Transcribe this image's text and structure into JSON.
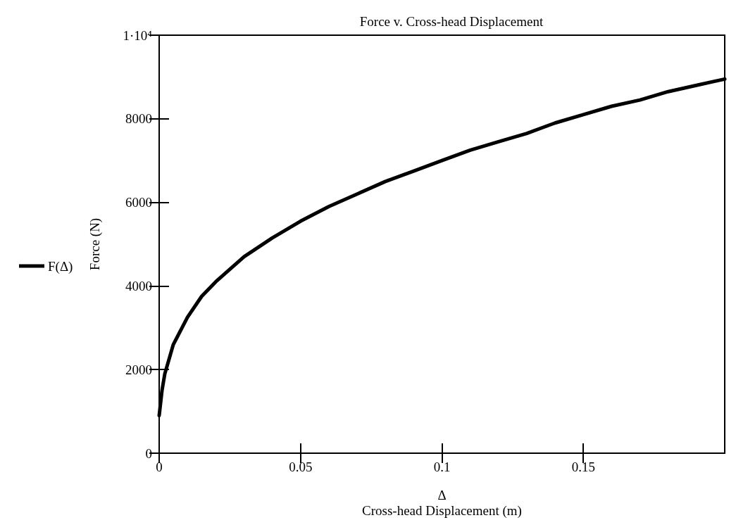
{
  "chart_data": {
    "type": "line",
    "title": "Force v. Cross-head Displacement",
    "xlabel": "Δ\nCross-head Displacement (m)",
    "ylabel": "Force (N)",
    "x": [
      0,
      0.001,
      0.002,
      0.005,
      0.01,
      0.015,
      0.02,
      0.03,
      0.04,
      0.05,
      0.06,
      0.07,
      0.08,
      0.09,
      0.1,
      0.11,
      0.12,
      0.13,
      0.14,
      0.15,
      0.16,
      0.17,
      0.18,
      0.19,
      0.2
    ],
    "series": [
      {
        "name": "F(Δ)",
        "color": "#000000",
        "values": [
          900,
          1500,
          1900,
          2600,
          3250,
          3750,
          4100,
          4700,
          5150,
          5550,
          5900,
          6200,
          6500,
          6750,
          7000,
          7250,
          7450,
          7650,
          7900,
          8100,
          8300,
          8450,
          8650,
          8800,
          8950
        ]
      }
    ],
    "xlim": [
      0,
      0.2
    ],
    "ylim": [
      0,
      10000
    ],
    "xticks": [
      0,
      0.05,
      0.1,
      0.15
    ],
    "yticks": [
      0,
      2000,
      4000,
      6000,
      8000,
      {
        "value": 10000,
        "label": "1·10⁴"
      }
    ],
    "grid": false,
    "legend": "left",
    "marker": "none",
    "line_style": "solid"
  }
}
